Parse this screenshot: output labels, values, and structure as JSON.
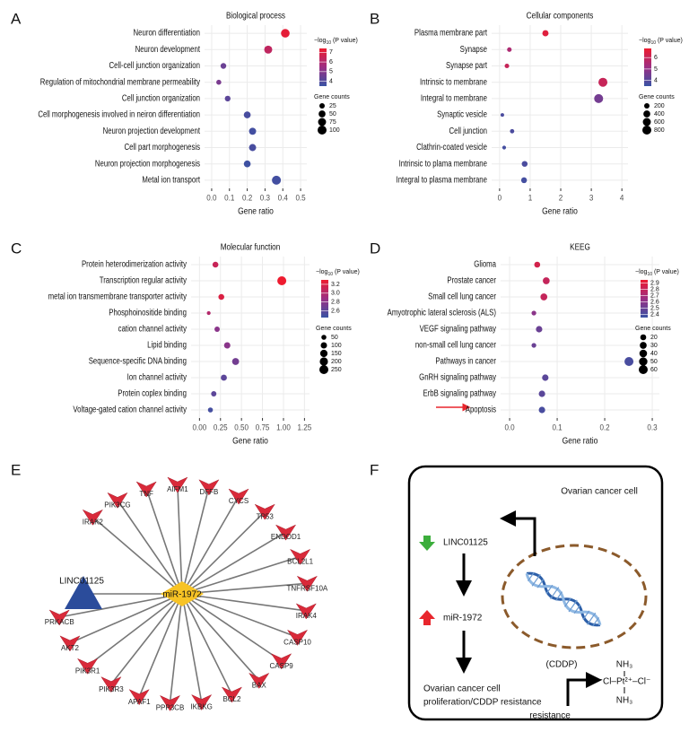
{
  "panel_labels": [
    "A",
    "B",
    "C",
    "D",
    "E",
    "F"
  ],
  "chart_data": [
    {
      "type": "dot",
      "title": "Biological process",
      "xlabel": "Gene ratio",
      "categories": [
        "Neuron differentiation",
        "Neuron development",
        "Cell-cell junction organization",
        "Regulation of mitochondrial membrane permeability",
        "Cell junction organization",
        "Cell morphogenesis involved in neiron differentiation",
        "Neuron projection development",
        "Cell part morphogenesis",
        "Neuron projection morphogenesis",
        "Metal ion transport"
      ],
      "values": [
        0.414,
        0.318,
        0.066,
        0.04,
        0.09,
        0.2,
        0.23,
        0.23,
        0.2,
        0.364
      ],
      "pvalues": [
        7.2,
        6.3,
        4.5,
        4.8,
        4.2,
        3.8,
        3.7,
        3.8,
        3.6,
        3.7
      ],
      "counts": [
        90,
        75,
        30,
        20,
        30,
        50,
        55,
        55,
        50,
        100
      ],
      "xlim": [
        -0.04,
        0.535
      ],
      "xticks": [
        {
          "value": 0,
          "label": "0.0"
        },
        0.1,
        0.2,
        0.3,
        0.4,
        0.5
      ],
      "clim": [
        3.5,
        7.4
      ],
      "color_ticks": [
        4,
        5,
        6,
        7
      ],
      "colors": [
        "#3953a4",
        "#9b2f84",
        "#ee1b2f"
      ],
      "color_title": {
        "prefix": "−log",
        "sub": "10",
        "suffix": " (P value)"
      },
      "size_title": "Gene counts",
      "size_ticks": [
        25,
        50,
        75,
        100
      ],
      "grid": true
    },
    {
      "type": "dot",
      "title": "Cellular components",
      "xlabel": "Gene ratio",
      "categories": [
        "Plasma membrane part",
        "Synapse",
        "Synapse part",
        "Intrinsic to membrane",
        "Integral to membrane",
        "Synaptic vesicle",
        "Cell junction",
        "Clathrin-coated vesicle",
        "Intrinsic to plama membrane",
        "Integral to plasma membrane"
      ],
      "values": [
        1.5,
        0.32,
        0.24,
        3.38,
        3.24,
        0.09,
        0.41,
        0.15,
        0.82,
        0.8
      ],
      "pvalues": [
        6.5,
        5.5,
        6,
        6,
        4.5,
        3.8,
        3.8,
        3.7,
        3.8,
        3.7
      ],
      "counts": [
        300,
        120,
        120,
        800,
        800,
        50,
        100,
        60,
        250,
        250
      ],
      "xlim": [
        -0.26,
        4.2
      ],
      "xticks": [
        0,
        1,
        2,
        3,
        4
      ],
      "clim": [
        3.5,
        6.8
      ],
      "color_ticks": [
        4,
        5,
        6
      ],
      "colors": [
        "#3953a4",
        "#9b2f84",
        "#ee1b2f"
      ],
      "color_title": {
        "prefix": "−log",
        "sub": "10",
        "suffix": " (P value)"
      },
      "size_title": "Gene counts",
      "size_ticks": [
        200,
        400,
        600,
        800
      ],
      "grid": true
    },
    {
      "type": "dot",
      "title": "Molecular function",
      "xlabel": "Gene ratio",
      "categories": [
        "Protein heterodimerization activity",
        "Transcription regular activity",
        "metal ion transmembrane transporter activity",
        "Phosphoinositide binding",
        "cation channel activity",
        "Lipid binding",
        "Sequence-specific DNA binding",
        "Ion channel activity",
        "Protein coplex binding",
        "Voltage-gated cation channel activity"
      ],
      "values": [
        0.19,
        0.98,
        0.26,
        0.11,
        0.21,
        0.33,
        0.43,
        0.29,
        0.17,
        0.13
      ],
      "pvalues": [
        3.1,
        3.3,
        3.2,
        3.0,
        2.8,
        2.8,
        2.7,
        2.6,
        2.6,
        2.5
      ],
      "counts": [
        80,
        250,
        80,
        20,
        60,
        100,
        130,
        90,
        60,
        50
      ],
      "xlim": [
        -0.1,
        1.31
      ],
      "xticks": [
        {
          "value": 0,
          "label": "0.00"
        },
        0.25,
        {
          "value": 0.5,
          "label": "0.50"
        },
        0.75,
        {
          "value": 1,
          "label": "1.00"
        },
        1.25
      ],
      "clim": [
        2.45,
        3.3
      ],
      "color_ticks": [
        2.6,
        2.8,
        {
          "value": 3,
          "label": "3.0"
        },
        3.2
      ],
      "colors": [
        "#3953a4",
        "#9b2f84",
        "#ee1b2f"
      ],
      "color_title": {
        "prefix": "−log",
        "sub": "10",
        "suffix": " (P value)"
      },
      "size_title": "Gene counts",
      "size_ticks": [
        50,
        100,
        150,
        200,
        250
      ],
      "grid": true
    },
    {
      "type": "dot",
      "title": "KEEG",
      "xlabel": "Gene ratio",
      "categories": [
        "Glioma",
        "Prostate cancer",
        "Small cell lung cancer",
        "Amyotrophic lateral sclerosis (ALS)",
        "VEGF signaling pathway",
        "non-small cell lung cancer",
        "Pathways in cancer",
        "GnRH signaling pathway",
        "ErbB signaling pathway",
        "Apoptosis"
      ],
      "values": [
        0.058,
        0.077,
        0.072,
        0.051,
        0.062,
        0.051,
        0.251,
        0.075,
        0.068,
        0.068
      ],
      "pvalues": [
        2.85,
        2.8,
        2.8,
        2.6,
        2.5,
        2.5,
        2.4,
        2.45,
        2.45,
        2.4
      ],
      "counts": [
        20,
        30,
        30,
        10,
        25,
        10,
        60,
        25,
        25,
        25
      ],
      "xlim": [
        -0.019,
        0.315
      ],
      "xticks": [
        {
          "value": 0,
          "label": "0.0"
        },
        0.1,
        0.2,
        0.3
      ],
      "clim": [
        2.35,
        2.95
      ],
      "color_ticks": [
        2.4,
        2.5,
        2.6,
        2.7,
        2.8,
        2.9
      ],
      "colors": [
        "#3953a4",
        "#9b2f84",
        "#ee1b2f"
      ],
      "color_title": {
        "prefix": "−log",
        "sub": "10",
        "suffix": " (P value)"
      },
      "size_title": "Gene counts",
      "size_ticks": [
        20,
        30,
        40,
        50,
        60
      ],
      "grid": true
    }
  ],
  "network": {
    "center": "miR-1972",
    "source": "LINC01125",
    "targets": [
      "IRAK2",
      "PIK3CG",
      "TNF",
      "AIFM1",
      "DFFB",
      "CYCS",
      "TP53",
      "ENDOD1",
      "BCL2L1",
      "TNFRSF10A",
      "IRAK4",
      "CASP10",
      "CASP9",
      "BAX",
      "BCL2",
      "IKBKG",
      "PPP3CB",
      "APAF1",
      "PIK3R3",
      "PIK3R1",
      "AKT2",
      "PRKACB"
    ]
  },
  "diagram": {
    "cell_label": "Ovarian cancer cell",
    "lncrna": "LINC01125",
    "mirna": "miR-1972",
    "outcome": [
      "Ovarian cancer cell",
      "proliferation/CDDP resistance"
    ],
    "drug": "(CDDP)",
    "drug_effect": "resistance",
    "structure": {
      "top": "NH₃",
      "middle": "⁻Cl–Pt²⁺–Cl⁻",
      "bottom": "NH₃"
    }
  }
}
